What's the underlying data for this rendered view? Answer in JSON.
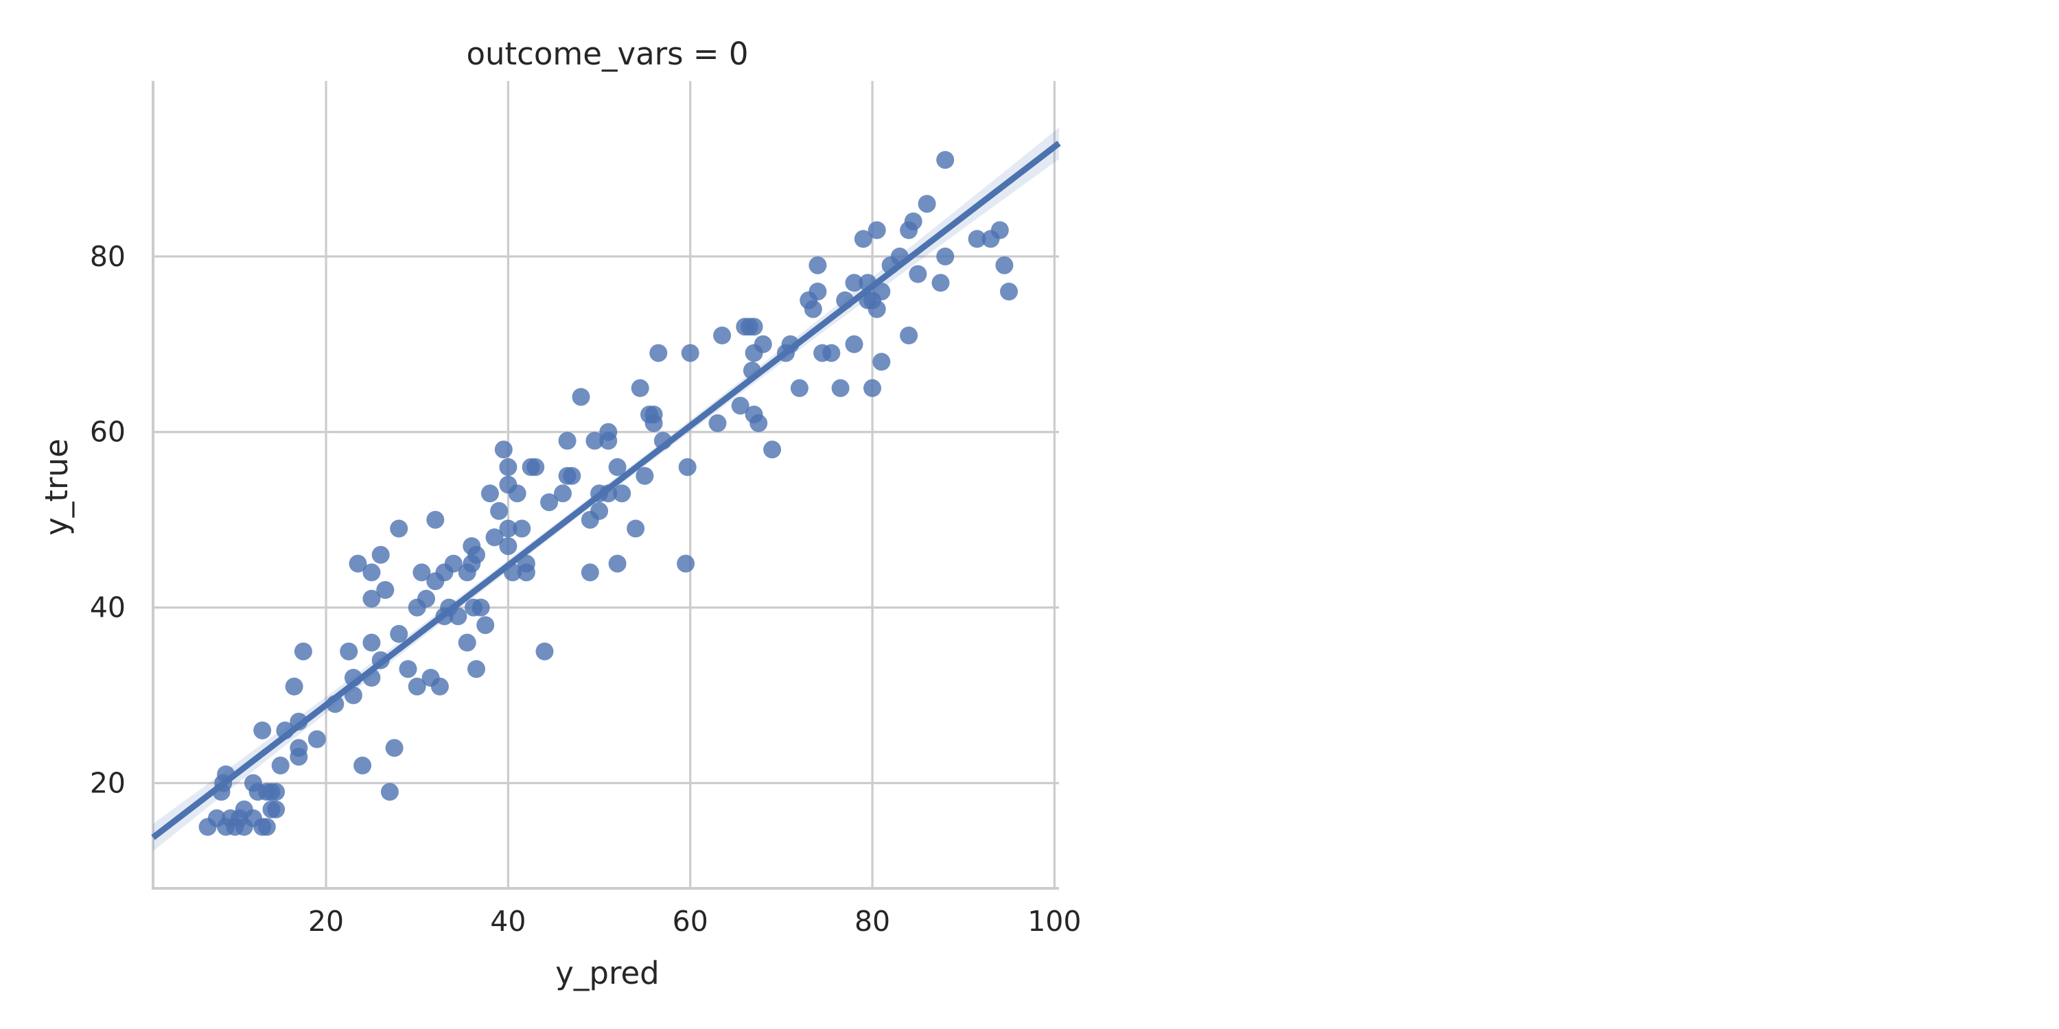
{
  "chart_data": {
    "type": "scatter",
    "title": "outcome_vars = 0",
    "xlabel": "y_pred",
    "ylabel": "y_true",
    "xlim": [
      1,
      100.5
    ],
    "ylim": [
      8,
      100
    ],
    "xticks": [
      20,
      40,
      60,
      80,
      100
    ],
    "yticks": [
      20,
      40,
      60,
      80
    ],
    "grid": true,
    "colors": {
      "points": "#4c72b0",
      "line": "#4c72b0",
      "grid": "#cccccc",
      "text": "#262626"
    },
    "regression": {
      "slope": 0.795,
      "intercept": 13.0,
      "ci_half_width_ends": 1.8,
      "ci_half_width_center": 0.6,
      "x_center": 48
    },
    "series": [
      {
        "points": [
          [
            7,
            15
          ],
          [
            8,
            16
          ],
          [
            8.5,
            19
          ],
          [
            8.7,
            20
          ],
          [
            9,
            21
          ],
          [
            9,
            15
          ],
          [
            9.5,
            16
          ],
          [
            10,
            15
          ],
          [
            10.5,
            16
          ],
          [
            11,
            15
          ],
          [
            11,
            17
          ],
          [
            12,
            16
          ],
          [
            12,
            20
          ],
          [
            12.5,
            19
          ],
          [
            13,
            15
          ],
          [
            13,
            26
          ],
          [
            13.5,
            19
          ],
          [
            13.5,
            15
          ],
          [
            14,
            17
          ],
          [
            14,
            19
          ],
          [
            14.5,
            19
          ],
          [
            14.5,
            17
          ],
          [
            15,
            22
          ],
          [
            15.5,
            26
          ],
          [
            16.5,
            31
          ],
          [
            17,
            27
          ],
          [
            17,
            24
          ],
          [
            17,
            23
          ],
          [
            17.5,
            35
          ],
          [
            19,
            25
          ],
          [
            21,
            29
          ],
          [
            22.5,
            35
          ],
          [
            23,
            30
          ],
          [
            23,
            32
          ],
          [
            23.5,
            45
          ],
          [
            24,
            22
          ],
          [
            25,
            32
          ],
          [
            25,
            36
          ],
          [
            25,
            44
          ],
          [
            25,
            41
          ],
          [
            26,
            34
          ],
          [
            26,
            46
          ],
          [
            26.5,
            42
          ],
          [
            27,
            19
          ],
          [
            27.5,
            24
          ],
          [
            28,
            37
          ],
          [
            28,
            49
          ],
          [
            29,
            33
          ],
          [
            30,
            40
          ],
          [
            30,
            31
          ],
          [
            30.5,
            44
          ],
          [
            31,
            41
          ],
          [
            31.5,
            32
          ],
          [
            32,
            43
          ],
          [
            32,
            50
          ],
          [
            32.5,
            31
          ],
          [
            33,
            44
          ],
          [
            33,
            39
          ],
          [
            33.5,
            40
          ],
          [
            34,
            45
          ],
          [
            34.5,
            39
          ],
          [
            35.5,
            36
          ],
          [
            35.5,
            44
          ],
          [
            36,
            45
          ],
          [
            36,
            47
          ],
          [
            36.2,
            40
          ],
          [
            36.5,
            46
          ],
          [
            36.5,
            33
          ],
          [
            37,
            40
          ],
          [
            37.5,
            38
          ],
          [
            38,
            53
          ],
          [
            38.5,
            48
          ],
          [
            39,
            51
          ],
          [
            39.5,
            58
          ],
          [
            40,
            49
          ],
          [
            40,
            47
          ],
          [
            40,
            54
          ],
          [
            40,
            56
          ],
          [
            40.5,
            44
          ],
          [
            41,
            53
          ],
          [
            41.5,
            49
          ],
          [
            42,
            44
          ],
          [
            42,
            45
          ],
          [
            42.5,
            56
          ],
          [
            43,
            56
          ],
          [
            44,
            35
          ],
          [
            44.5,
            52
          ],
          [
            46,
            53
          ],
          [
            46.5,
            55
          ],
          [
            46.5,
            59
          ],
          [
            47,
            55
          ],
          [
            48,
            64
          ],
          [
            49,
            50
          ],
          [
            49,
            44
          ],
          [
            49.5,
            59
          ],
          [
            50,
            53
          ],
          [
            50,
            51
          ],
          [
            51,
            59
          ],
          [
            51,
            60
          ],
          [
            51,
            53
          ],
          [
            52,
            56
          ],
          [
            52,
            45
          ],
          [
            52.5,
            53
          ],
          [
            54,
            49
          ],
          [
            54.5,
            65
          ],
          [
            55,
            55
          ],
          [
            55.5,
            62
          ],
          [
            56,
            61
          ],
          [
            56,
            62
          ],
          [
            56.5,
            69
          ],
          [
            57,
            59
          ],
          [
            59.5,
            45
          ],
          [
            59.7,
            56
          ],
          [
            60,
            69
          ],
          [
            63,
            61
          ],
          [
            63.5,
            71
          ],
          [
            65.5,
            63
          ],
          [
            66,
            72
          ],
          [
            66.5,
            72
          ],
          [
            66.8,
            67
          ],
          [
            67,
            62
          ],
          [
            67,
            72
          ],
          [
            67,
            69
          ],
          [
            67.5,
            61
          ],
          [
            68,
            70
          ],
          [
            69,
            58
          ],
          [
            70.5,
            69
          ],
          [
            71,
            70
          ],
          [
            72,
            65
          ],
          [
            73,
            75
          ],
          [
            73.5,
            74
          ],
          [
            74,
            79
          ],
          [
            74,
            76
          ],
          [
            74.5,
            69
          ],
          [
            75.5,
            69
          ],
          [
            76.5,
            65
          ],
          [
            77,
            75
          ],
          [
            78,
            70
          ],
          [
            78,
            77
          ],
          [
            79,
            82
          ],
          [
            79.5,
            77
          ],
          [
            79.5,
            75
          ],
          [
            80,
            65
          ],
          [
            80,
            75
          ],
          [
            80.5,
            83
          ],
          [
            80.5,
            74
          ],
          [
            81,
            68
          ],
          [
            81,
            76
          ],
          [
            82,
            79
          ],
          [
            83,
            80
          ],
          [
            84,
            71
          ],
          [
            84,
            83
          ],
          [
            84.5,
            84
          ],
          [
            85,
            78
          ],
          [
            86,
            86
          ],
          [
            87.5,
            77
          ],
          [
            88,
            91
          ],
          [
            88,
            80
          ],
          [
            91.5,
            82
          ],
          [
            93,
            82
          ],
          [
            94,
            83
          ],
          [
            94.5,
            79
          ],
          [
            95,
            76
          ]
        ]
      }
    ]
  }
}
